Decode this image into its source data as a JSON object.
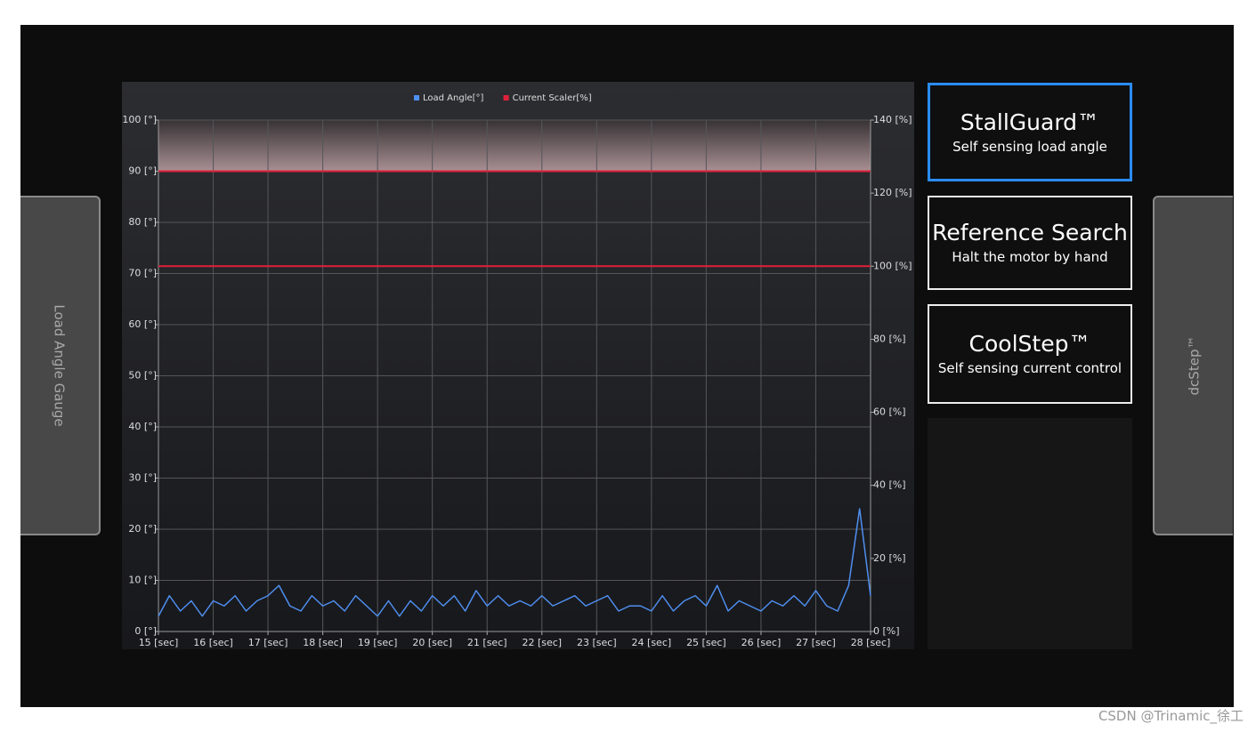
{
  "chart_data": {
    "type": "line",
    "legend_position": "top",
    "grid": true,
    "x": [
      15,
      15.2,
      15.4,
      15.6,
      15.8,
      16,
      16.2,
      16.4,
      16.6,
      16.8,
      17,
      17.2,
      17.4,
      17.6,
      17.8,
      18,
      18.2,
      18.4,
      18.6,
      18.8,
      19,
      19.2,
      19.4,
      19.6,
      19.8,
      20,
      20.2,
      20.4,
      20.6,
      20.8,
      21,
      21.2,
      21.4,
      21.6,
      21.8,
      22,
      22.2,
      22.4,
      22.6,
      22.8,
      23,
      23.2,
      23.4,
      23.6,
      23.8,
      24,
      24.2,
      24.4,
      24.6,
      24.8,
      25,
      25.2,
      25.4,
      25.6,
      25.8,
      26,
      26.2,
      26.4,
      26.6,
      26.8,
      27,
      27.2,
      27.4,
      27.6,
      27.8,
      28
    ],
    "series": [
      {
        "name": "Load Angle[°]",
        "color": "#4f8ff0",
        "axis": "y",
        "values": [
          3,
          7,
          4,
          6,
          3,
          6,
          5,
          7,
          4,
          6,
          7,
          9,
          5,
          4,
          7,
          5,
          6,
          4,
          7,
          5,
          3,
          6,
          3,
          6,
          4,
          7,
          5,
          7,
          4,
          8,
          5,
          7,
          5,
          6,
          5,
          7,
          5,
          6,
          7,
          5,
          6,
          7,
          4,
          5,
          5,
          4,
          7,
          4,
          6,
          7,
          5,
          9,
          4,
          6,
          5,
          4,
          6,
          5,
          7,
          5,
          8,
          5,
          4,
          9,
          24,
          7
        ]
      },
      {
        "name": "Current Scaler[%]",
        "color": "#e0203a",
        "axis": "y2",
        "x": [
          15,
          28
        ],
        "values": [
          100,
          100
        ]
      }
    ],
    "threshold": {
      "value": 90,
      "color": "#e0203a"
    },
    "xlim": [
      15,
      28
    ],
    "xticks": [
      {
        "value": 15,
        "label": "15 [sec]"
      },
      {
        "value": 16,
        "label": "16 [sec]"
      },
      {
        "value": 17,
        "label": "17 [sec]"
      },
      {
        "value": 18,
        "label": "18 [sec]"
      },
      {
        "value": 19,
        "label": "19 [sec]"
      },
      {
        "value": 20,
        "label": "20 [sec]"
      },
      {
        "value": 21,
        "label": "21 [sec]"
      },
      {
        "value": 22,
        "label": "22 [sec]"
      },
      {
        "value": 23,
        "label": "23 [sec]"
      },
      {
        "value": 24,
        "label": "24 [sec]"
      },
      {
        "value": 25,
        "label": "25 [sec]"
      },
      {
        "value": 26,
        "label": "26 [sec]"
      },
      {
        "value": 27,
        "label": "27 [sec]"
      },
      {
        "value": 28,
        "label": "28 [sec]"
      }
    ],
    "ylim": [
      0,
      100
    ],
    "yticks": [
      {
        "value": 0,
        "label": "0 [°]"
      },
      {
        "value": 10,
        "label": "10 [°]"
      },
      {
        "value": 20,
        "label": "20 [°]"
      },
      {
        "value": 30,
        "label": "30 [°]"
      },
      {
        "value": 40,
        "label": "40 [°]"
      },
      {
        "value": 50,
        "label": "50 [°]"
      },
      {
        "value": 60,
        "label": "60 [°]"
      },
      {
        "value": 70,
        "label": "70 [°]"
      },
      {
        "value": 80,
        "label": "80 [°]"
      },
      {
        "value": 90,
        "label": "90 [°]"
      },
      {
        "value": 100,
        "label": "100 [°]"
      }
    ],
    "y2lim": [
      0,
      140
    ],
    "y2ticks": [
      {
        "value": 0,
        "label": "0 [%]"
      },
      {
        "value": 20,
        "label": "20 [%]"
      },
      {
        "value": 40,
        "label": "40 [%]"
      },
      {
        "value": 60,
        "label": "60 [%]"
      },
      {
        "value": 80,
        "label": "80 [%]"
      },
      {
        "value": 100,
        "label": "100 [%]"
      },
      {
        "value": 120,
        "label": "120 [%]"
      },
      {
        "value": 140,
        "label": "140 [%]"
      }
    ]
  },
  "side_tabs": {
    "left": "Load Angle Gauge",
    "right": "dcStep™"
  },
  "buttons": [
    {
      "title": "StallGuard™",
      "subtitle": "Self sensing load angle"
    },
    {
      "title": "Reference Search",
      "subtitle": "Halt the motor by hand"
    },
    {
      "title": "CoolStep™",
      "subtitle": "Self sensing current control"
    }
  ],
  "watermark": "CSDN @Trinamic_徐工"
}
